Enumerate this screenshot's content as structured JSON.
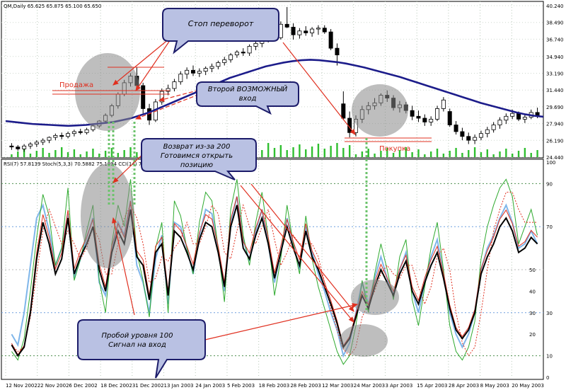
{
  "chart_data": {
    "type": "candlestick",
    "symbol_header": "QM,Daily  65.625 65.875 65.100 65.650",
    "indicator_header": "RSI(7) 57.8139  Stoch(5,3,3) 70.5882 75.1894  CCI(14) 71.0469",
    "price_axis": [
      "40.240",
      "38.490",
      "36.740",
      "34.940",
      "33.190",
      "31.440",
      "29.690",
      "27.940",
      "26.190",
      "24.440"
    ],
    "osc_axis_right": [
      "100",
      "90",
      "70",
      "30",
      "10",
      "0"
    ],
    "osc_axis_left": [
      "50",
      "40",
      "30",
      "20"
    ],
    "x_labels": [
      "12 Nov 2002",
      "22 Nov 2002",
      "6 Dec 2002",
      "18 Dec 2002",
      "31 Dec 2002",
      "13 Jan 2003",
      "24 Jan 2003",
      "5 Feb 2003",
      "18 Feb 2003",
      "28 Feb 2003",
      "12 Mar 2003",
      "24 Mar 2003",
      "3 Apr 2003",
      "15 Apr 2003",
      "28 Apr 2003",
      "8 May 2003",
      "20 May 2003"
    ],
    "candles": [
      [
        25.6,
        25.9,
        25.2,
        25.5
      ],
      [
        25.5,
        25.7,
        25.1,
        25.3
      ],
      [
        25.3,
        25.8,
        25.0,
        25.6
      ],
      [
        25.6,
        26.0,
        25.3,
        25.8
      ],
      [
        25.8,
        26.2,
        25.5,
        26.0
      ],
      [
        26.0,
        26.4,
        25.7,
        26.2
      ],
      [
        26.2,
        26.6,
        25.9,
        26.5
      ],
      [
        26.5,
        26.9,
        26.2,
        26.7
      ],
      [
        26.7,
        27.0,
        26.3,
        26.6
      ],
      [
        26.6,
        27.1,
        26.4,
        26.9
      ],
      [
        26.9,
        27.3,
        26.6,
        27.1
      ],
      [
        27.1,
        27.4,
        26.8,
        27.0
      ],
      [
        27.0,
        27.5,
        26.8,
        27.3
      ],
      [
        27.3,
        27.9,
        27.1,
        27.7
      ],
      [
        27.7,
        28.3,
        27.5,
        28.2
      ],
      [
        28.2,
        29.0,
        28.0,
        28.8
      ],
      [
        28.8,
        30.0,
        28.6,
        29.8
      ],
      [
        29.8,
        31.2,
        29.5,
        31.0
      ],
      [
        31.0,
        32.5,
        30.8,
        32.2
      ],
      [
        32.2,
        33.2,
        31.8,
        32.9
      ],
      [
        32.9,
        33.8,
        31.5,
        31.9
      ],
      [
        31.9,
        32.2,
        29.0,
        29.5
      ],
      [
        29.5,
        30.0,
        27.8,
        28.3
      ],
      [
        28.3,
        30.5,
        28.1,
        30.2
      ],
      [
        30.2,
        31.6,
        29.9,
        31.3
      ],
      [
        31.3,
        32.0,
        30.9,
        31.6
      ],
      [
        31.6,
        32.6,
        31.3,
        32.3
      ],
      [
        32.3,
        33.4,
        32.0,
        33.1
      ],
      [
        33.1,
        33.8,
        32.6,
        33.5
      ],
      [
        33.5,
        34.0,
        32.9,
        33.2
      ],
      [
        33.2,
        33.7,
        32.8,
        33.4
      ],
      [
        33.4,
        33.9,
        33.0,
        33.7
      ],
      [
        33.7,
        34.2,
        33.3,
        33.9
      ],
      [
        33.9,
        34.5,
        33.6,
        34.3
      ],
      [
        34.3,
        34.9,
        34.0,
        34.6
      ],
      [
        34.6,
        35.3,
        34.3,
        35.1
      ],
      [
        35.1,
        35.6,
        34.8,
        35.4
      ],
      [
        35.4,
        35.8,
        35.0,
        35.3
      ],
      [
        35.3,
        36.2,
        35.0,
        36.0
      ],
      [
        36.0,
        36.5,
        35.6,
        36.3
      ],
      [
        36.3,
        36.9,
        35.9,
        36.7
      ],
      [
        36.7,
        37.6,
        36.4,
        37.3
      ],
      [
        37.3,
        38.0,
        36.6,
        36.9
      ],
      [
        36.9,
        38.6,
        36.7,
        38.3
      ],
      [
        38.3,
        40.1,
        37.9,
        38.0
      ],
      [
        38.0,
        38.4,
        36.7,
        37.2
      ],
      [
        37.2,
        37.9,
        36.8,
        37.6
      ],
      [
        37.6,
        38.1,
        37.1,
        37.4
      ],
      [
        37.4,
        38.0,
        37.0,
        37.8
      ],
      [
        37.8,
        38.2,
        37.2,
        37.9
      ],
      [
        37.9,
        38.2,
        37.3,
        37.5
      ],
      [
        37.5,
        37.8,
        35.6,
        35.8
      ],
      [
        35.8,
        36.3,
        34.0,
        35.1
      ],
      [
        30.0,
        31.3,
        28.3,
        28.5
      ],
      [
        28.5,
        29.2,
        26.5,
        27.0
      ],
      [
        27.0,
        28.8,
        26.6,
        28.4
      ],
      [
        28.4,
        29.8,
        28.0,
        29.4
      ],
      [
        29.4,
        30.2,
        28.9,
        29.8
      ],
      [
        29.8,
        30.6,
        29.4,
        30.1
      ],
      [
        30.1,
        31.1,
        29.8,
        30.9
      ],
      [
        30.9,
        31.4,
        30.2,
        30.6
      ],
      [
        30.6,
        30.9,
        29.3,
        29.6
      ],
      [
        29.6,
        30.3,
        29.1,
        29.9
      ],
      [
        29.9,
        30.2,
        29.0,
        29.3
      ],
      [
        29.3,
        29.8,
        28.3,
        28.7
      ],
      [
        28.7,
        29.3,
        28.1,
        28.5
      ],
      [
        28.5,
        28.9,
        27.7,
        28.1
      ],
      [
        28.1,
        28.7,
        27.7,
        28.4
      ],
      [
        28.4,
        29.8,
        28.2,
        29.5
      ],
      [
        29.5,
        30.7,
        29.2,
        30.4
      ],
      [
        29.2,
        29.5,
        27.6,
        27.8
      ],
      [
        27.8,
        28.2,
        26.8,
        27.1
      ],
      [
        27.1,
        27.5,
        26.2,
        26.6
      ],
      [
        26.6,
        27.0,
        25.8,
        26.2
      ],
      [
        26.2,
        26.8,
        25.8,
        26.5
      ],
      [
        26.5,
        27.2,
        26.2,
        26.9
      ],
      [
        26.9,
        27.6,
        26.5,
        27.3
      ],
      [
        27.3,
        28.1,
        27.0,
        27.8
      ],
      [
        27.8,
        28.6,
        27.4,
        28.3
      ],
      [
        28.3,
        29.0,
        27.9,
        28.7
      ],
      [
        28.7,
        29.4,
        28.4,
        29.0
      ],
      [
        29.0,
        29.2,
        28.2,
        28.4
      ],
      [
        28.4,
        28.9,
        28.0,
        28.6
      ],
      [
        28.6,
        29.4,
        28.4,
        29.1
      ],
      [
        29.1,
        29.6,
        28.5,
        28.7
      ]
    ],
    "ma200": [
      28.2,
      28.1,
      28.0,
      27.9,
      27.85,
      27.8,
      27.75,
      27.7,
      27.75,
      27.8,
      27.9,
      28.0,
      28.1,
      28.3,
      28.5,
      28.8,
      29.1,
      29.5,
      29.9,
      30.3,
      30.7,
      31.1,
      31.5,
      31.9,
      32.3,
      32.7,
      33.0,
      33.3,
      33.6,
      33.9,
      34.1,
      34.3,
      34.45,
      34.55,
      34.6,
      34.55,
      34.45,
      34.35,
      34.2,
      34.0,
      33.8,
      33.55,
      33.3,
      33.05,
      32.8,
      32.5,
      32.2,
      31.9,
      31.6,
      31.3,
      31.0,
      30.7,
      30.4,
      30.1,
      29.85,
      29.6,
      29.35,
      29.1,
      28.9,
      28.75,
      28.65
    ],
    "rsi7": [
      15,
      10,
      14,
      30,
      55,
      72,
      62,
      48,
      55,
      74,
      48,
      56,
      62,
      70,
      50,
      40,
      58,
      68,
      62,
      78,
      56,
      52,
      36,
      58,
      62,
      38,
      68,
      65,
      58,
      50,
      64,
      72,
      70,
      58,
      42,
      70,
      80,
      60,
      55,
      66,
      74,
      62,
      46,
      58,
      70,
      60,
      52,
      68,
      56,
      50,
      42,
      34,
      25,
      14,
      18,
      28,
      38,
      32,
      42,
      50,
      44,
      38,
      48,
      54,
      40,
      34,
      44,
      52,
      58,
      46,
      32,
      22,
      18,
      22,
      30,
      48,
      56,
      62,
      70,
      74,
      68,
      58,
      60,
      65,
      62
    ],
    "stoch_k": [
      12,
      8,
      18,
      40,
      65,
      85,
      75,
      52,
      60,
      88,
      45,
      55,
      68,
      80,
      45,
      30,
      62,
      80,
      70,
      92,
      58,
      45,
      28,
      60,
      72,
      30,
      82,
      75,
      60,
      48,
      72,
      86,
      82,
      60,
      35,
      78,
      92,
      66,
      52,
      72,
      86,
      65,
      38,
      55,
      80,
      62,
      48,
      75,
      55,
      42,
      32,
      22,
      12,
      6,
      10,
      24,
      45,
      30,
      48,
      62,
      50,
      36,
      56,
      64,
      36,
      24,
      42,
      60,
      72,
      50,
      24,
      12,
      8,
      14,
      26,
      55,
      70,
      80,
      88,
      92,
      84,
      62,
      70,
      78,
      66
    ],
    "stoch_d": [
      15,
      12,
      14,
      28,
      48,
      68,
      78,
      70,
      62,
      68,
      62,
      55,
      60,
      70,
      64,
      48,
      48,
      62,
      74,
      80,
      74,
      62,
      44,
      46,
      56,
      54,
      60,
      64,
      72,
      62,
      62,
      70,
      80,
      76,
      58,
      55,
      68,
      80,
      70,
      62,
      70,
      78,
      64,
      52,
      58,
      66,
      62,
      62,
      62,
      56,
      44,
      32,
      22,
      13,
      10,
      14,
      28,
      34,
      40,
      48,
      52,
      48,
      46,
      52,
      52,
      42,
      34,
      42,
      56,
      60,
      50,
      30,
      16,
      10,
      14,
      30,
      50,
      68,
      78,
      86,
      86,
      78,
      72,
      72,
      72
    ],
    "cci14": [
      20,
      15,
      30,
      52,
      74,
      80,
      68,
      52,
      60,
      76,
      46,
      55,
      65,
      74,
      44,
      38,
      58,
      72,
      66,
      82,
      52,
      44,
      30,
      55,
      66,
      34,
      72,
      70,
      60,
      48,
      66,
      78,
      76,
      60,
      40,
      72,
      84,
      64,
      54,
      68,
      78,
      62,
      44,
      58,
      74,
      62,
      50,
      70,
      58,
      48,
      40,
      30,
      22,
      10,
      16,
      30,
      44,
      34,
      46,
      56,
      46,
      38,
      50,
      58,
      40,
      30,
      44,
      56,
      64,
      48,
      30,
      20,
      14,
      20,
      30,
      50,
      60,
      66,
      74,
      80,
      72,
      60,
      62,
      68,
      62
    ],
    "annotations": {
      "callout_reversal": "Стоп переворот",
      "callout_second_entry": "Второй ВОЗМОЖНЫЙ вход",
      "callout_return": "Возврат из-за 200 Готовимся открыть позицию",
      "callout_breakout": "Пробой уровня 100 Сигнал на вход",
      "label_sell": "Продажа",
      "label_buy": "Покупка"
    }
  }
}
